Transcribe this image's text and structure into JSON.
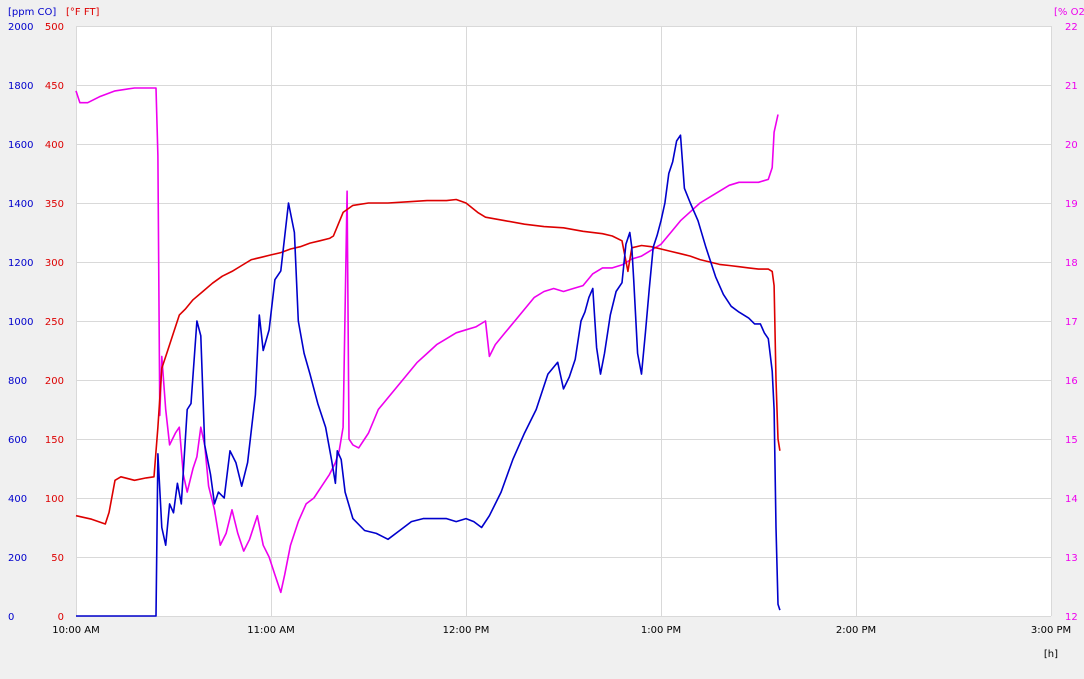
{
  "chart_data": {
    "type": "line",
    "title": "",
    "colors": {
      "co": "#0000cc",
      "temp": "#dd0000",
      "o2": "#ee00ee",
      "grid": "#d9d9d9",
      "plot_bg": "#ffffff",
      "background": "#f0f0f0",
      "xaxis_text": "#000000"
    },
    "xaxis": {
      "unit_label": "[h]",
      "range": [
        10.0,
        15.0
      ],
      "ticks": [
        10,
        11,
        12,
        13,
        14,
        15
      ],
      "tick_labels": [
        "10:00 AM",
        "11:00 AM",
        "12:00 PM",
        "1:00 PM",
        "2:00 PM",
        "3:00 PM"
      ],
      "grid": true
    },
    "yaxes": {
      "co": {
        "unit_label": "[ppm CO]",
        "range": [
          0,
          2000
        ],
        "tick_labels": [
          "0",
          "200",
          "400",
          "600",
          "800",
          "1000",
          "1200",
          "1400",
          "1600",
          "1800",
          "2000"
        ]
      },
      "temp": {
        "unit_label": "[°F FT]",
        "range": [
          0,
          500
        ],
        "tick_labels": [
          "0",
          "50",
          "100",
          "150",
          "200",
          "250",
          "300",
          "350",
          "400",
          "450",
          "500"
        ]
      },
      "o2": {
        "unit_label": "[% O2]",
        "range": [
          12,
          22
        ],
        "tick_labels": [
          "12",
          "13",
          "14",
          "15",
          "16",
          "17",
          "18",
          "19",
          "20",
          "21",
          "22"
        ]
      }
    },
    "series": [
      {
        "name": "ppm CO",
        "axis": "co",
        "points": [
          [
            10.0,
            0
          ],
          [
            10.41,
            0
          ],
          [
            10.42,
            550
          ],
          [
            10.44,
            300
          ],
          [
            10.46,
            240
          ],
          [
            10.48,
            380
          ],
          [
            10.5,
            350
          ],
          [
            10.52,
            450
          ],
          [
            10.54,
            380
          ],
          [
            10.57,
            700
          ],
          [
            10.59,
            720
          ],
          [
            10.62,
            1000
          ],
          [
            10.64,
            950
          ],
          [
            10.66,
            580
          ],
          [
            10.69,
            480
          ],
          [
            10.71,
            380
          ],
          [
            10.73,
            420
          ],
          [
            10.76,
            400
          ],
          [
            10.79,
            560
          ],
          [
            10.82,
            520
          ],
          [
            10.85,
            440
          ],
          [
            10.88,
            520
          ],
          [
            10.92,
            750
          ],
          [
            10.94,
            1020
          ],
          [
            10.96,
            900
          ],
          [
            10.99,
            970
          ],
          [
            11.02,
            1140
          ],
          [
            11.05,
            1170
          ],
          [
            11.09,
            1400
          ],
          [
            11.12,
            1300
          ],
          [
            11.14,
            1000
          ],
          [
            11.17,
            890
          ],
          [
            11.2,
            820
          ],
          [
            11.24,
            720
          ],
          [
            11.28,
            640
          ],
          [
            11.31,
            530
          ],
          [
            11.33,
            450
          ],
          [
            11.34,
            560
          ],
          [
            11.36,
            530
          ],
          [
            11.38,
            420
          ],
          [
            11.42,
            330
          ],
          [
            11.48,
            290
          ],
          [
            11.54,
            280
          ],
          [
            11.6,
            260
          ],
          [
            11.66,
            290
          ],
          [
            11.72,
            320
          ],
          [
            11.78,
            330
          ],
          [
            11.84,
            330
          ],
          [
            11.9,
            330
          ],
          [
            11.95,
            320
          ],
          [
            12.0,
            330
          ],
          [
            12.04,
            320
          ],
          [
            12.08,
            300
          ],
          [
            12.12,
            340
          ],
          [
            12.18,
            420
          ],
          [
            12.24,
            530
          ],
          [
            12.3,
            620
          ],
          [
            12.36,
            700
          ],
          [
            12.42,
            820
          ],
          [
            12.47,
            860
          ],
          [
            12.5,
            770
          ],
          [
            12.53,
            810
          ],
          [
            12.56,
            870
          ],
          [
            12.59,
            1000
          ],
          [
            12.61,
            1030
          ],
          [
            12.63,
            1080
          ],
          [
            12.65,
            1110
          ],
          [
            12.67,
            910
          ],
          [
            12.69,
            820
          ],
          [
            12.71,
            890
          ],
          [
            12.74,
            1020
          ],
          [
            12.77,
            1100
          ],
          [
            12.8,
            1130
          ],
          [
            12.82,
            1260
          ],
          [
            12.84,
            1300
          ],
          [
            12.85,
            1250
          ],
          [
            12.86,
            1140
          ],
          [
            12.88,
            890
          ],
          [
            12.9,
            820
          ],
          [
            12.92,
            960
          ],
          [
            12.94,
            1110
          ],
          [
            12.96,
            1250
          ],
          [
            12.98,
            1290
          ],
          [
            13.0,
            1340
          ],
          [
            13.02,
            1400
          ],
          [
            13.04,
            1500
          ],
          [
            13.06,
            1540
          ],
          [
            13.08,
            1610
          ],
          [
            13.1,
            1630
          ],
          [
            13.12,
            1450
          ],
          [
            13.15,
            1400
          ],
          [
            13.19,
            1340
          ],
          [
            13.23,
            1250
          ],
          [
            13.28,
            1150
          ],
          [
            13.32,
            1090
          ],
          [
            13.36,
            1050
          ],
          [
            13.4,
            1030
          ],
          [
            13.45,
            1010
          ],
          [
            13.48,
            990
          ],
          [
            13.51,
            990
          ],
          [
            13.53,
            960
          ],
          [
            13.55,
            940
          ],
          [
            13.57,
            830
          ],
          [
            13.58,
            700
          ],
          [
            13.59,
            300
          ],
          [
            13.6,
            40
          ],
          [
            13.61,
            20
          ]
        ]
      },
      {
        "name": "°F FT",
        "axis": "temp",
        "points": [
          [
            10.0,
            85
          ],
          [
            10.08,
            82
          ],
          [
            10.15,
            78
          ],
          [
            10.17,
            88
          ],
          [
            10.2,
            115
          ],
          [
            10.23,
            118
          ],
          [
            10.3,
            115
          ],
          [
            10.36,
            117
          ],
          [
            10.4,
            118
          ],
          [
            10.42,
            160
          ],
          [
            10.44,
            210
          ],
          [
            10.47,
            225
          ],
          [
            10.5,
            240
          ],
          [
            10.53,
            255
          ],
          [
            10.56,
            260
          ],
          [
            10.6,
            268
          ],
          [
            10.65,
            275
          ],
          [
            10.7,
            282
          ],
          [
            10.75,
            288
          ],
          [
            10.8,
            292
          ],
          [
            10.85,
            297
          ],
          [
            10.9,
            302
          ],
          [
            10.95,
            304
          ],
          [
            11.0,
            306
          ],
          [
            11.05,
            308
          ],
          [
            11.1,
            311
          ],
          [
            11.15,
            313
          ],
          [
            11.2,
            316
          ],
          [
            11.25,
            318
          ],
          [
            11.3,
            320
          ],
          [
            11.32,
            322
          ],
          [
            11.34,
            330
          ],
          [
            11.37,
            342
          ],
          [
            11.42,
            348
          ],
          [
            11.5,
            350
          ],
          [
            11.6,
            350
          ],
          [
            11.7,
            351
          ],
          [
            11.8,
            352
          ],
          [
            11.9,
            352
          ],
          [
            11.95,
            353
          ],
          [
            12.0,
            350
          ],
          [
            12.06,
            342
          ],
          [
            12.1,
            338
          ],
          [
            12.2,
            335
          ],
          [
            12.3,
            332
          ],
          [
            12.4,
            330
          ],
          [
            12.5,
            329
          ],
          [
            12.6,
            326
          ],
          [
            12.7,
            324
          ],
          [
            12.75,
            322
          ],
          [
            12.8,
            318
          ],
          [
            12.83,
            292
          ],
          [
            12.85,
            312
          ],
          [
            12.9,
            314
          ],
          [
            12.95,
            313
          ],
          [
            13.0,
            311
          ],
          [
            13.05,
            309
          ],
          [
            13.1,
            307
          ],
          [
            13.15,
            305
          ],
          [
            13.2,
            302
          ],
          [
            13.25,
            300
          ],
          [
            13.3,
            298
          ],
          [
            13.35,
            297
          ],
          [
            13.4,
            296
          ],
          [
            13.45,
            295
          ],
          [
            13.5,
            294
          ],
          [
            13.55,
            294
          ],
          [
            13.57,
            292
          ],
          [
            13.58,
            280
          ],
          [
            13.59,
            200
          ],
          [
            13.6,
            150
          ],
          [
            13.61,
            140
          ]
        ]
      },
      {
        "name": "% O2",
        "axis": "o2",
        "points": [
          [
            10.0,
            20.9
          ],
          [
            10.02,
            20.7
          ],
          [
            10.06,
            20.7
          ],
          [
            10.12,
            20.8
          ],
          [
            10.2,
            20.9
          ],
          [
            10.3,
            20.95
          ],
          [
            10.38,
            20.95
          ],
          [
            10.41,
            20.95
          ],
          [
            10.42,
            19.8
          ],
          [
            10.43,
            15.4
          ],
          [
            10.44,
            16.4
          ],
          [
            10.46,
            15.5
          ],
          [
            10.48,
            14.9
          ],
          [
            10.51,
            15.1
          ],
          [
            10.53,
            15.2
          ],
          [
            10.55,
            14.4
          ],
          [
            10.57,
            14.1
          ],
          [
            10.6,
            14.5
          ],
          [
            10.62,
            14.7
          ],
          [
            10.64,
            15.2
          ],
          [
            10.66,
            14.9
          ],
          [
            10.68,
            14.2
          ],
          [
            10.71,
            13.8
          ],
          [
            10.74,
            13.2
          ],
          [
            10.77,
            13.4
          ],
          [
            10.8,
            13.8
          ],
          [
            10.83,
            13.4
          ],
          [
            10.86,
            13.1
          ],
          [
            10.89,
            13.3
          ],
          [
            10.93,
            13.7
          ],
          [
            10.96,
            13.2
          ],
          [
            10.99,
            13.0
          ],
          [
            11.02,
            12.7
          ],
          [
            11.05,
            12.4
          ],
          [
            11.07,
            12.7
          ],
          [
            11.1,
            13.2
          ],
          [
            11.14,
            13.6
          ],
          [
            11.18,
            13.9
          ],
          [
            11.22,
            14.0
          ],
          [
            11.26,
            14.2
          ],
          [
            11.3,
            14.4
          ],
          [
            11.33,
            14.6
          ],
          [
            11.35,
            14.8
          ],
          [
            11.37,
            15.2
          ],
          [
            11.39,
            19.2
          ],
          [
            11.4,
            15.0
          ],
          [
            11.42,
            14.9
          ],
          [
            11.45,
            14.85
          ],
          [
            11.48,
            15.0
          ],
          [
            11.5,
            15.1
          ],
          [
            11.55,
            15.5
          ],
          [
            11.6,
            15.7
          ],
          [
            11.65,
            15.9
          ],
          [
            11.7,
            16.1
          ],
          [
            11.75,
            16.3
          ],
          [
            11.8,
            16.45
          ],
          [
            11.85,
            16.6
          ],
          [
            11.9,
            16.7
          ],
          [
            11.95,
            16.8
          ],
          [
            12.0,
            16.85
          ],
          [
            12.05,
            16.9
          ],
          [
            12.1,
            17.0
          ],
          [
            12.12,
            16.4
          ],
          [
            12.15,
            16.6
          ],
          [
            12.2,
            16.8
          ],
          [
            12.25,
            17.0
          ],
          [
            12.3,
            17.2
          ],
          [
            12.35,
            17.4
          ],
          [
            12.4,
            17.5
          ],
          [
            12.45,
            17.55
          ],
          [
            12.5,
            17.5
          ],
          [
            12.55,
            17.55
          ],
          [
            12.6,
            17.6
          ],
          [
            12.65,
            17.8
          ],
          [
            12.7,
            17.9
          ],
          [
            12.75,
            17.9
          ],
          [
            12.8,
            17.95
          ],
          [
            12.85,
            18.05
          ],
          [
            12.9,
            18.1
          ],
          [
            12.95,
            18.2
          ],
          [
            13.0,
            18.3
          ],
          [
            13.05,
            18.5
          ],
          [
            13.1,
            18.7
          ],
          [
            13.15,
            18.85
          ],
          [
            13.2,
            19.0
          ],
          [
            13.25,
            19.1
          ],
          [
            13.3,
            19.2
          ],
          [
            13.35,
            19.3
          ],
          [
            13.4,
            19.35
          ],
          [
            13.5,
            19.35
          ],
          [
            13.55,
            19.4
          ],
          [
            13.57,
            19.6
          ],
          [
            13.58,
            20.2
          ],
          [
            13.6,
            20.5
          ]
        ]
      }
    ]
  }
}
